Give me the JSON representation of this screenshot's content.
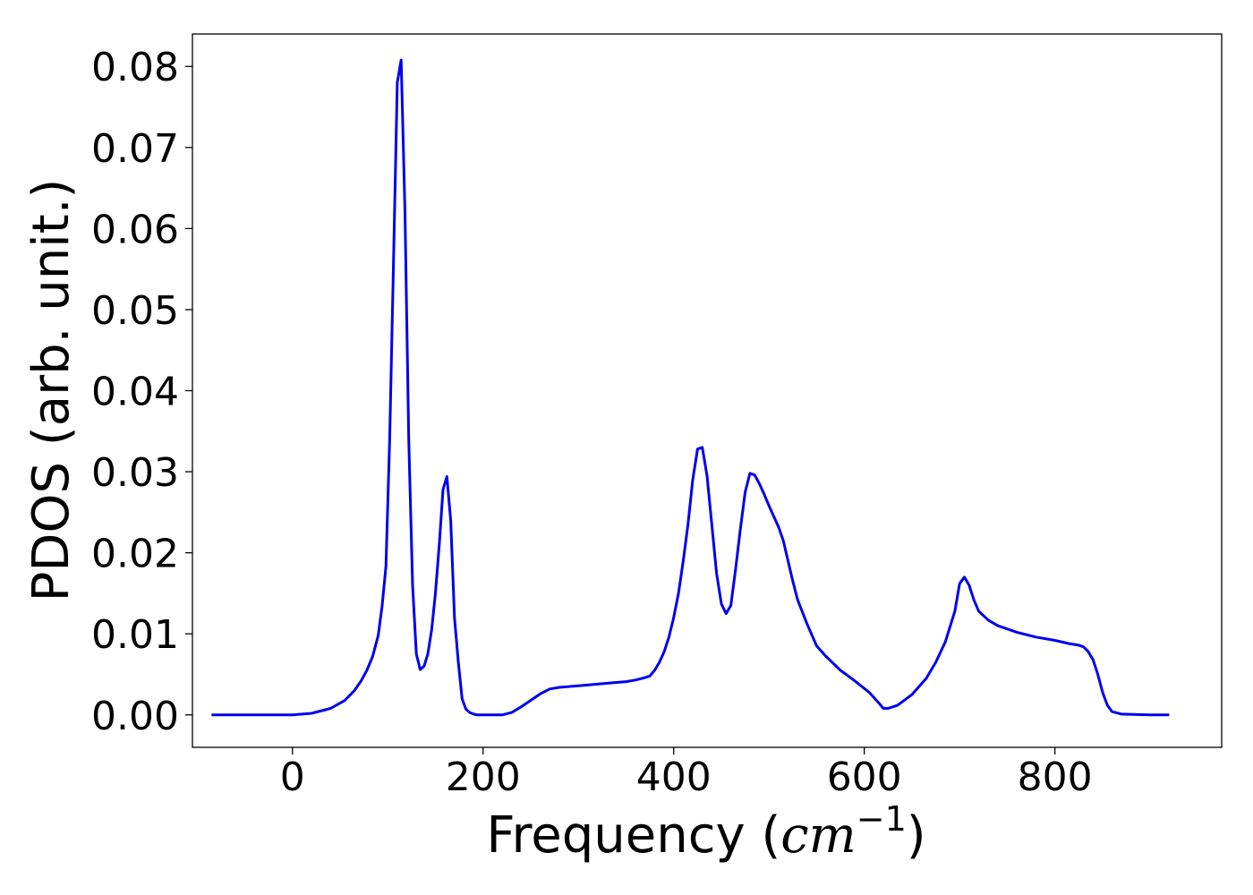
{
  "chart_data": {
    "type": "line",
    "title": "",
    "xlabel": "Frequency",
    "xlabel_math": "cm",
    "xlabel_sup": "−1",
    "ylabel": "PDOS (arb. unit.)",
    "xlim": [
      -105,
      975
    ],
    "ylim": [
      -0.004,
      0.084
    ],
    "xticks": [
      0,
      200,
      400,
      600,
      800
    ],
    "yticks": [
      0.0,
      0.01,
      0.02,
      0.03,
      0.04,
      0.05,
      0.06,
      0.07,
      0.08
    ],
    "xtick_labels": [
      "0",
      "200",
      "400",
      "600",
      "800"
    ],
    "ytick_labels": [
      "0.00",
      "0.01",
      "0.02",
      "0.03",
      "0.04",
      "0.05",
      "0.06",
      "0.07",
      "0.08"
    ],
    "grid": false,
    "legend": "none",
    "colors": {
      "line": "#0000ee",
      "frame": "#000000"
    },
    "series": [
      {
        "x": [
          -85,
          -40,
          0,
          20,
          40,
          55,
          65,
          72,
          78,
          84,
          90,
          94,
          98,
          102,
          106,
          110,
          114,
          118,
          122,
          126,
          130,
          134,
          138,
          142,
          146,
          150,
          154,
          158,
          162,
          166,
          170,
          174,
          178,
          182,
          186,
          190,
          194,
          198,
          202,
          206,
          210,
          215,
          220,
          230,
          240,
          250,
          260,
          270,
          280,
          300,
          320,
          340,
          350,
          360,
          370,
          375,
          380,
          385,
          390,
          395,
          400,
          405,
          410,
          415,
          420,
          425,
          430,
          435,
          440,
          445,
          450,
          455,
          460,
          465,
          470,
          475,
          480,
          485,
          490,
          495,
          500,
          505,
          510,
          515,
          520,
          525,
          530,
          540,
          550,
          560,
          575,
          590,
          605,
          615,
          620,
          625,
          635,
          650,
          665,
          675,
          685,
          695,
          700,
          705,
          710,
          715,
          720,
          730,
          740,
          760,
          780,
          800,
          815,
          825,
          830,
          835,
          840,
          845,
          850,
          855,
          860,
          870,
          900,
          920
        ],
        "y": [
          0,
          0,
          0,
          0.0002,
          0.0008,
          0.0018,
          0.003,
          0.0042,
          0.0055,
          0.0072,
          0.0098,
          0.0134,
          0.0183,
          0.034,
          0.056,
          0.078,
          0.0808,
          0.062,
          0.034,
          0.016,
          0.0075,
          0.0056,
          0.006,
          0.0075,
          0.0105,
          0.015,
          0.021,
          0.0278,
          0.0294,
          0.024,
          0.012,
          0.0065,
          0.002,
          0.0007,
          0.0003,
          0.0001,
          0,
          0,
          0,
          0,
          0,
          0,
          0,
          0.0003,
          0.001,
          0.0018,
          0.0026,
          0.0032,
          0.0034,
          0.0036,
          0.0038,
          0.004,
          0.0041,
          0.0043,
          0.0046,
          0.0048,
          0.0055,
          0.0065,
          0.0078,
          0.0096,
          0.012,
          0.015,
          0.019,
          0.0235,
          0.029,
          0.0328,
          0.033,
          0.0295,
          0.0235,
          0.0175,
          0.0137,
          0.0125,
          0.0135,
          0.018,
          0.023,
          0.0275,
          0.0298,
          0.0296,
          0.0285,
          0.0272,
          0.0258,
          0.0245,
          0.0232,
          0.0215,
          0.019,
          0.0165,
          0.0142,
          0.0112,
          0.0085,
          0.0072,
          0.0055,
          0.0042,
          0.0028,
          0.0015,
          0.0008,
          0.0008,
          0.0012,
          0.0025,
          0.0045,
          0.0065,
          0.009,
          0.0128,
          0.0162,
          0.017,
          0.016,
          0.0142,
          0.0128,
          0.0117,
          0.011,
          0.0102,
          0.0096,
          0.0092,
          0.0088,
          0.0086,
          0.0084,
          0.0078,
          0.0068,
          0.005,
          0.0028,
          0.0012,
          0.0004,
          0.0001,
          0,
          0
        ]
      }
    ]
  }
}
